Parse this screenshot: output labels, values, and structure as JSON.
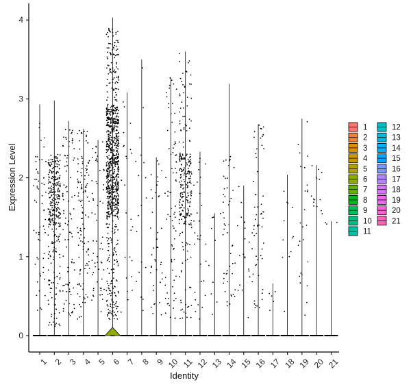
{
  "chart_data": {
    "type": "violin",
    "xlabel": "Identity",
    "ylabel": "Expression Level",
    "ylim": [
      -0.2,
      4.2
    ],
    "yticks": [
      "0",
      "1",
      "2",
      "3",
      "4"
    ],
    "categories": [
      "1",
      "2",
      "3",
      "4",
      "5",
      "6",
      "7",
      "8",
      "9",
      "10",
      "11",
      "12",
      "13",
      "14",
      "15",
      "16",
      "17",
      "18",
      "19",
      "20",
      "21"
    ],
    "colors": [
      "#F8766D",
      "#EC8239",
      "#DB8E00",
      "#C79800",
      "#AEA200",
      "#8FAA00",
      "#64B200",
      "#00B81B",
      "#00BD5C",
      "#00C085",
      "#00C1A7",
      "#00BFC4",
      "#00BADE",
      "#00B2F3",
      "#00A6FF",
      "#7C96FF",
      "#B385FF",
      "#D874FD",
      "#EF67EB",
      "#FD61D3",
      "#FF63B6"
    ],
    "max_values": [
      2.93,
      2.98,
      2.72,
      2.62,
      2.48,
      4.03,
      3.08,
      3.5,
      2.26,
      3.27,
      3.6,
      2.33,
      1.55,
      3.19,
      1.9,
      2.68,
      0.66,
      2.04,
      2.75,
      2.16,
      1.45
    ],
    "point_counts": [
      60,
      320,
      90,
      120,
      60,
      900,
      25,
      20,
      40,
      80,
      260,
      30,
      10,
      50,
      20,
      60,
      5,
      12,
      25,
      15,
      3
    ],
    "dense_ranges": [
      [
        0.3,
        2.7
      ],
      [
        0.1,
        2.3
      ],
      [
        0.2,
        2.7
      ],
      [
        0.2,
        2.6
      ],
      [
        0.2,
        2.5
      ],
      [
        0.2,
        3.9
      ],
      [
        0.2,
        3.1
      ],
      [
        0.2,
        3.5
      ],
      [
        0.2,
        2.3
      ],
      [
        0.2,
        3.3
      ],
      [
        0.2,
        3.6
      ],
      [
        0.2,
        2.3
      ],
      [
        0.2,
        1.55
      ],
      [
        0.3,
        2.3
      ],
      [
        0.2,
        1.9
      ],
      [
        0.2,
        2.7
      ],
      [
        0.3,
        0.66
      ],
      [
        0.3,
        2.04
      ],
      [
        0.2,
        2.75
      ],
      [
        1.5,
        2.16
      ],
      [
        1.4,
        1.45
      ]
    ],
    "legend": {
      "position": "right",
      "entries": [
        "1",
        "2",
        "3",
        "4",
        "5",
        "6",
        "7",
        "8",
        "9",
        "10",
        "11",
        "12",
        "13",
        "14",
        "15",
        "16",
        "17",
        "18",
        "19",
        "20",
        "21"
      ]
    },
    "grid": false
  }
}
